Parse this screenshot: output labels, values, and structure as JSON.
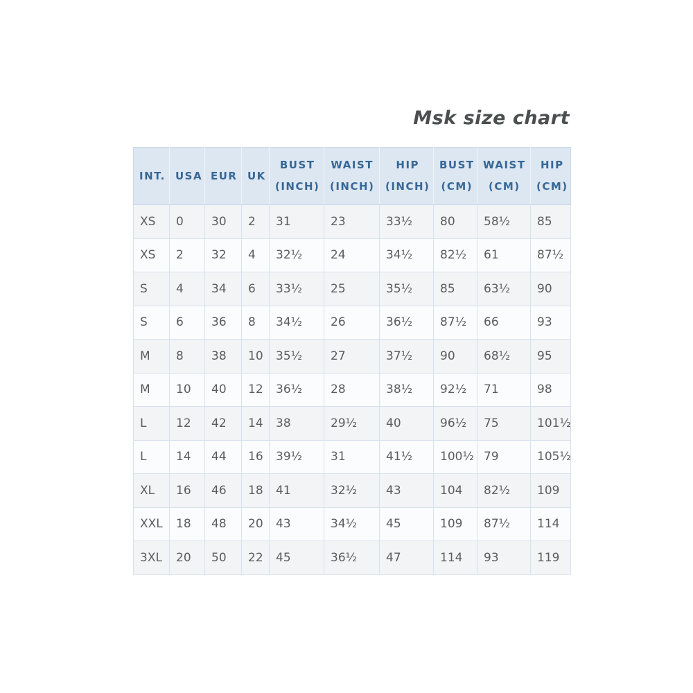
{
  "title": "Msk size chart",
  "colors": {
    "header_bg": "#dde7f2",
    "header_text": "#376795",
    "body_text": "#5a5c5f",
    "border": "#ccd9e8",
    "row_odd_bg": "#f2f4f6",
    "row_even_bg": "#fbfcfd",
    "title_text": "#4d4e50"
  },
  "table": {
    "columns": [
      {
        "id": "int",
        "label_lines": [
          "INT."
        ]
      },
      {
        "id": "usa",
        "label_lines": [
          "USA"
        ]
      },
      {
        "id": "eur",
        "label_lines": [
          "EUR"
        ]
      },
      {
        "id": "uk",
        "label_lines": [
          "UK"
        ]
      },
      {
        "id": "bust-inch",
        "label_lines": [
          "BUST",
          "(INCH)"
        ]
      },
      {
        "id": "waist-inch",
        "label_lines": [
          "WAIST",
          "(INCH)"
        ]
      },
      {
        "id": "hip-inch",
        "label_lines": [
          "HIP",
          "(INCH)"
        ]
      },
      {
        "id": "bust-cm",
        "label_lines": [
          "BUST",
          "(CM)"
        ]
      },
      {
        "id": "waist-cm",
        "label_lines": [
          "WAIST",
          "(CM)"
        ]
      },
      {
        "id": "hip-cm",
        "label_lines": [
          "HIP",
          "(CM)"
        ]
      }
    ],
    "rows": [
      [
        "XS",
        "0",
        "30",
        "2",
        "31",
        "23",
        "33½",
        "80",
        "58½",
        "85"
      ],
      [
        "XS",
        "2",
        "32",
        "4",
        "32½",
        "24",
        "34½",
        "82½",
        "61",
        "87½"
      ],
      [
        "S",
        "4",
        "34",
        "6",
        "33½",
        "25",
        "35½",
        "85",
        "63½",
        "90"
      ],
      [
        "S",
        "6",
        "36",
        "8",
        "34½",
        "26",
        "36½",
        "87½",
        "66",
        "93"
      ],
      [
        "M",
        "8",
        "38",
        "10",
        "35½",
        "27",
        "37½",
        "90",
        "68½",
        "95"
      ],
      [
        "M",
        "10",
        "40",
        "12",
        "36½",
        "28",
        "38½",
        "92½",
        "71",
        "98"
      ],
      [
        "L",
        "12",
        "42",
        "14",
        "38",
        "29½",
        "40",
        "96½",
        "75",
        "101½"
      ],
      [
        "L",
        "14",
        "44",
        "16",
        "39½",
        "31",
        "41½",
        "100½",
        "79",
        "105½"
      ],
      [
        "XL",
        "16",
        "46",
        "18",
        "41",
        "32½",
        "43",
        "104",
        "82½",
        "109"
      ],
      [
        "XXL",
        "18",
        "48",
        "20",
        "43",
        "34½",
        "45",
        "109",
        "87½",
        "114"
      ],
      [
        "3XL",
        "20",
        "50",
        "22",
        "45",
        "36½",
        "47",
        "114",
        "93",
        "119"
      ]
    ]
  }
}
